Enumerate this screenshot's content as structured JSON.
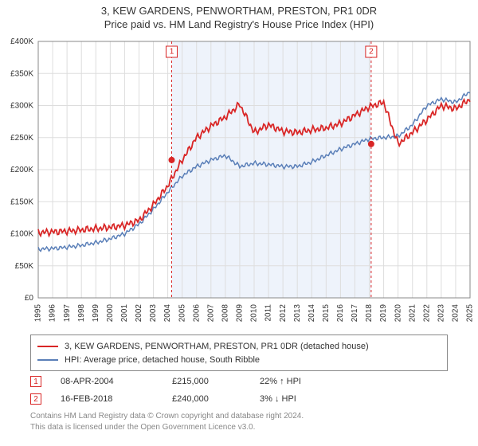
{
  "title_line1": "3, KEW GARDENS, PENWORTHAM, PRESTON, PR1 0DR",
  "title_line2": "Price paid vs. HM Land Registry's House Price Index (HPI)",
  "chart": {
    "type": "line",
    "x_years": [
      "1995",
      "1996",
      "1997",
      "1998",
      "1999",
      "2000",
      "2001",
      "2002",
      "2003",
      "2004",
      "2005",
      "2006",
      "2007",
      "2008",
      "2009",
      "2010",
      "2011",
      "2012",
      "2013",
      "2014",
      "2015",
      "2016",
      "2017",
      "2018",
      "2019",
      "2020",
      "2021",
      "2022",
      "2023",
      "2024",
      "2025"
    ],
    "ylim": [
      0,
      400000
    ],
    "ytick_step": 50000,
    "ytick_labels": [
      "£0",
      "£50K",
      "£100K",
      "£150K",
      "£200K",
      "£250K",
      "£300K",
      "£350K",
      "£400K"
    ],
    "background_color": "#ffffff",
    "grid_color": "#dddddd",
    "shade_color": "#eef3fb",
    "shade_start_year": 2004.27,
    "shade_end_year": 2018.13,
    "series_red": {
      "color": "#d92626",
      "values": [
        102000,
        103000,
        104000,
        106000,
        108000,
        110000,
        113000,
        121000,
        145000,
        175000,
        215000,
        250000,
        268000,
        282000,
        302000,
        258000,
        270000,
        260000,
        258000,
        262000,
        265000,
        272000,
        285000,
        298000,
        305000,
        240000,
        258000,
        278000,
        300000,
        295000,
        310000
      ]
    },
    "series_blue": {
      "color": "#5a7fb8",
      "values": [
        76000,
        77000,
        79000,
        82000,
        86000,
        92000,
        100000,
        115000,
        138000,
        165000,
        190000,
        205000,
        215000,
        222000,
        205000,
        210000,
        208000,
        205000,
        205000,
        212000,
        222000,
        232000,
        240000,
        248000,
        250000,
        252000,
        270000,
        300000,
        310000,
        305000,
        322000
      ]
    },
    "events": [
      {
        "num": "1",
        "year": 2004.27,
        "y_value": 215000,
        "marker": true
      },
      {
        "num": "2",
        "year": 2018.13,
        "y_value": 240000,
        "marker": true
      }
    ],
    "axis_fontsize": 10
  },
  "legend": {
    "border_color": "#888888",
    "items": [
      {
        "color": "#d92626",
        "label": "3, KEW GARDENS, PENWORTHAM, PRESTON, PR1 0DR (detached house)"
      },
      {
        "color": "#5a7fb8",
        "label": "HPI: Average price, detached house, South Ribble"
      }
    ]
  },
  "event_rows": [
    {
      "num": "1",
      "color": "#d92626",
      "date": "08-APR-2004",
      "price": "£215,000",
      "delta": "22% ↑ HPI"
    },
    {
      "num": "2",
      "color": "#d92626",
      "date": "16-FEB-2018",
      "price": "£240,000",
      "delta": "3% ↓ HPI"
    }
  ],
  "footer_line1": "Contains HM Land Registry data © Crown copyright and database right 2024.",
  "footer_line2": "This data is licensed under the Open Government Licence v3.0."
}
